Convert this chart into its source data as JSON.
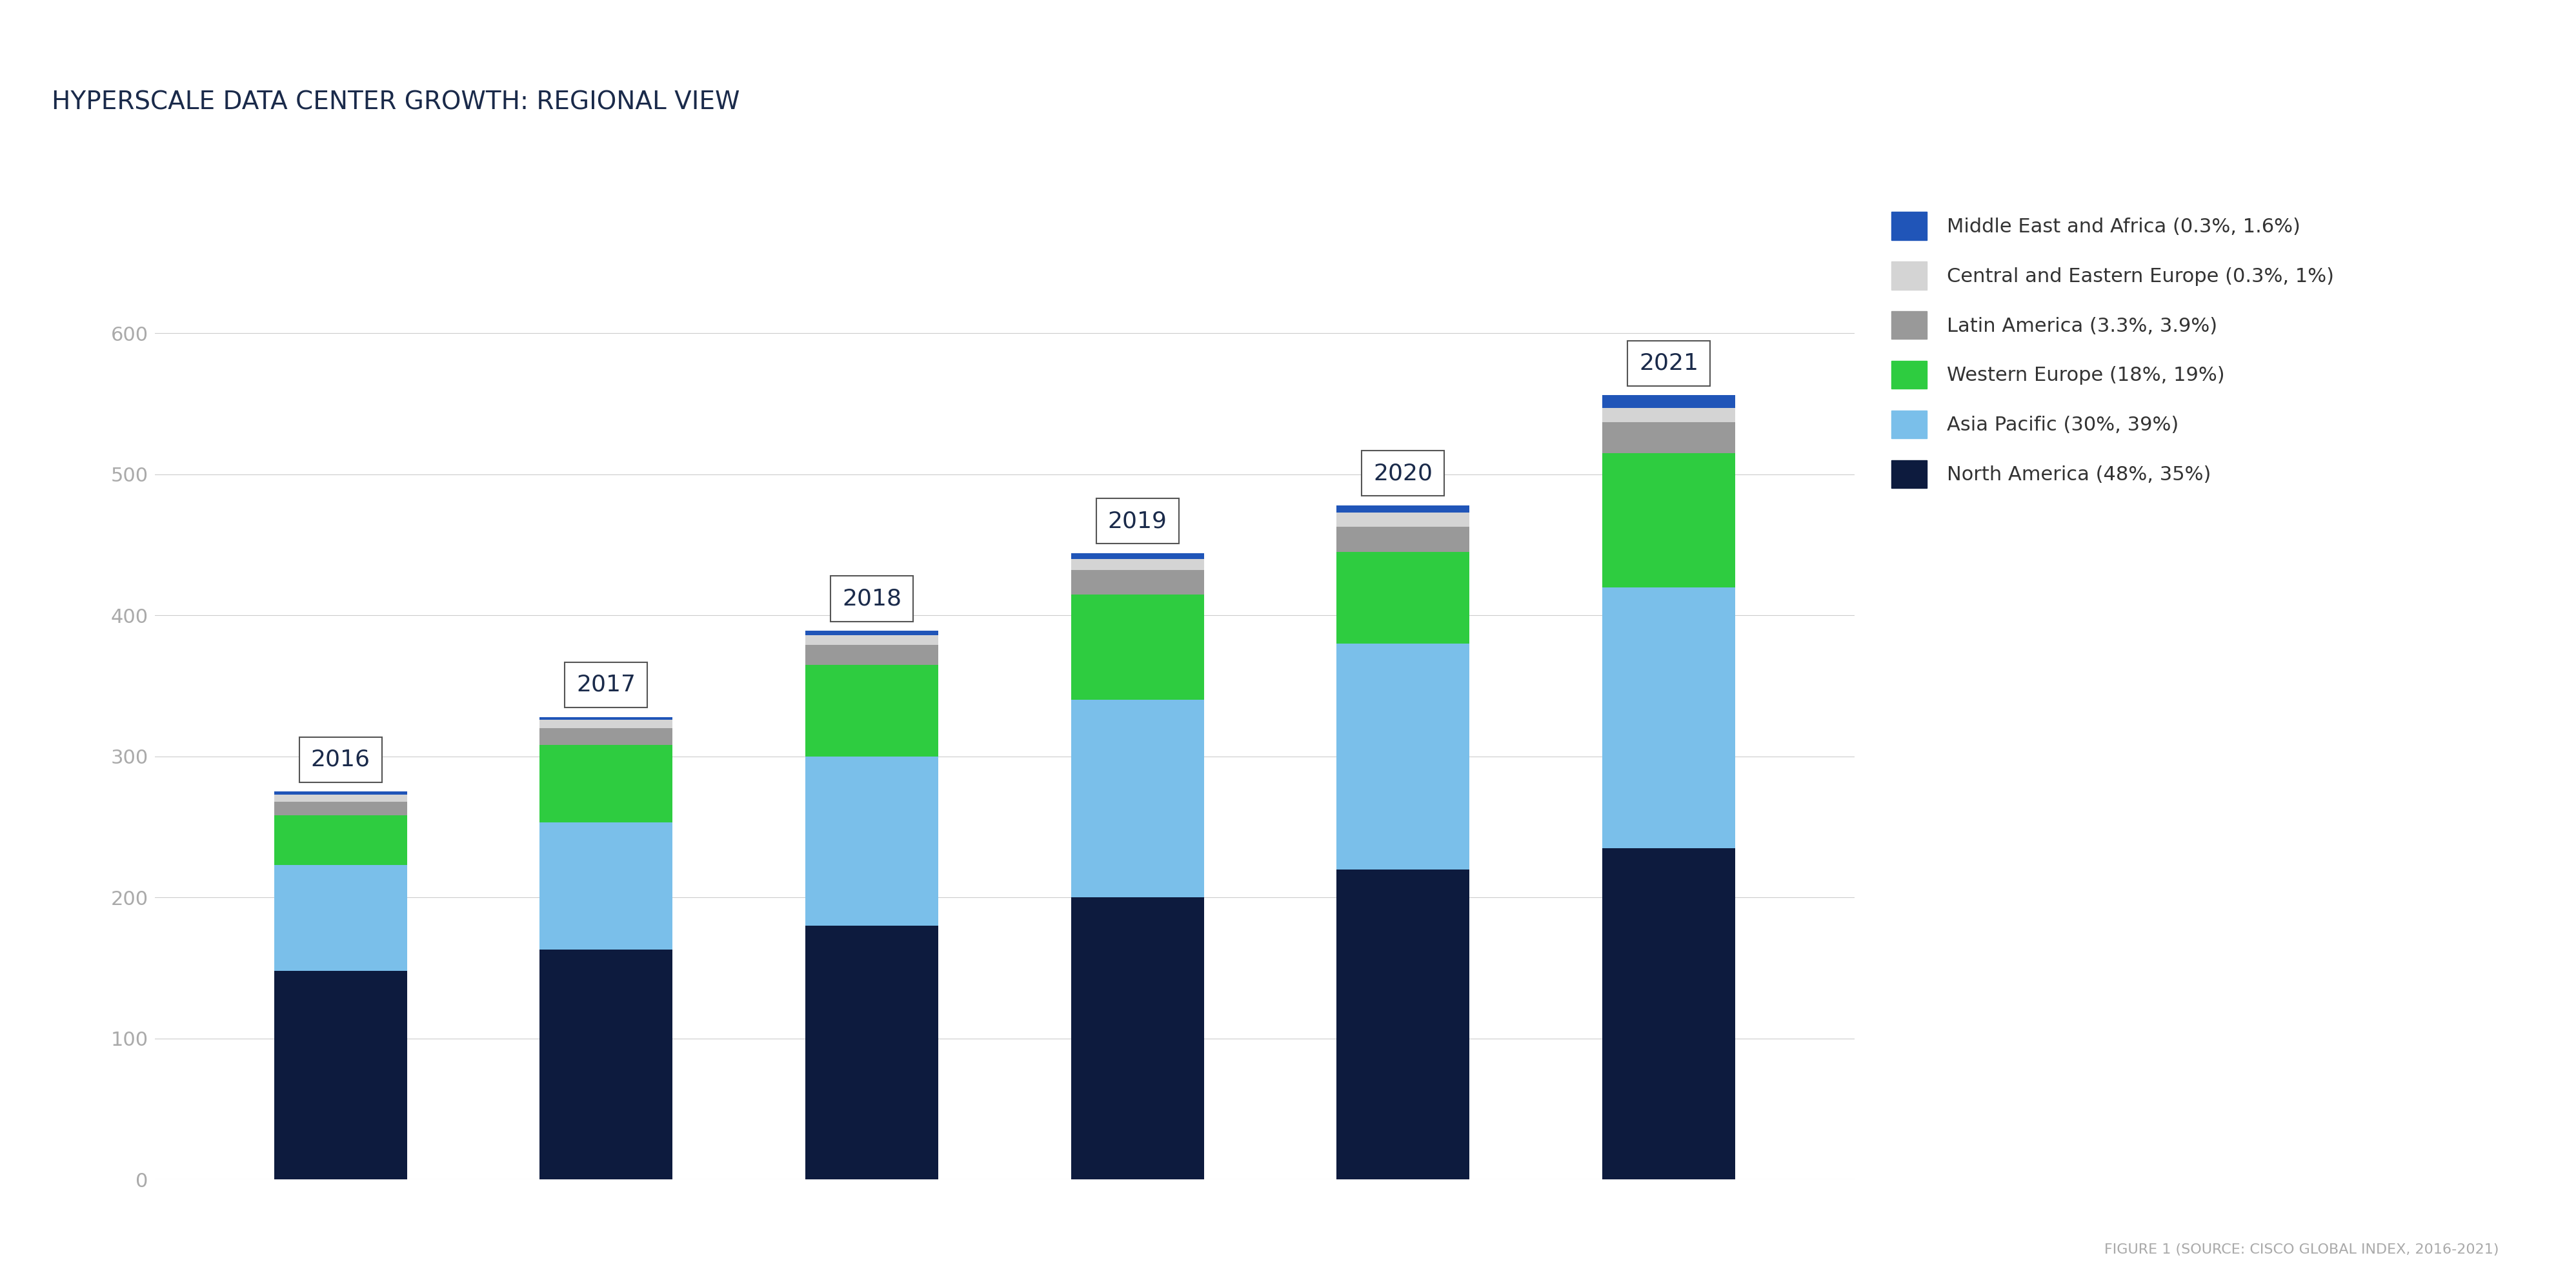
{
  "title": "HYPERSCALE DATA CENTER GROWTH: REGIONAL VIEW",
  "footnote": "FIGURE 1 (SOURCE: CISCO GLOBAL INDEX, 2016-2021)",
  "years": [
    "2016",
    "2017",
    "2018",
    "2019",
    "2020",
    "2021"
  ],
  "regions": [
    "North America (48%, 35%)",
    "Asia Pacific (30%, 39%)",
    "Western Europe (18%, 19%)",
    "Latin America (3.3%, 3.9%)",
    "Central and Eastern Europe (0.3%, 1%)",
    "Middle East and Africa (0.3%, 1.6%)"
  ],
  "colors": [
    "#0d1b3e",
    "#7abfea",
    "#2ecc40",
    "#999999",
    "#d4d4d4",
    "#2055b8"
  ],
  "values": [
    [
      148,
      163,
      180,
      200,
      220,
      235
    ],
    [
      75,
      90,
      120,
      140,
      160,
      185
    ],
    [
      35,
      55,
      65,
      75,
      65,
      95
    ],
    [
      10,
      12,
      14,
      17,
      18,
      22
    ],
    [
      5,
      6,
      7,
      8,
      10,
      10
    ],
    [
      2,
      2,
      3,
      4,
      5,
      9
    ]
  ],
  "ylim": [
    0,
    700
  ],
  "yticks": [
    0,
    100,
    200,
    300,
    400,
    500,
    600
  ],
  "background_color": "#ffffff",
  "title_fontsize": 28,
  "legend_fontsize": 22,
  "tick_fontsize": 22,
  "footnote_fontsize": 16,
  "label_fontsize": 26,
  "bar_width": 0.5
}
